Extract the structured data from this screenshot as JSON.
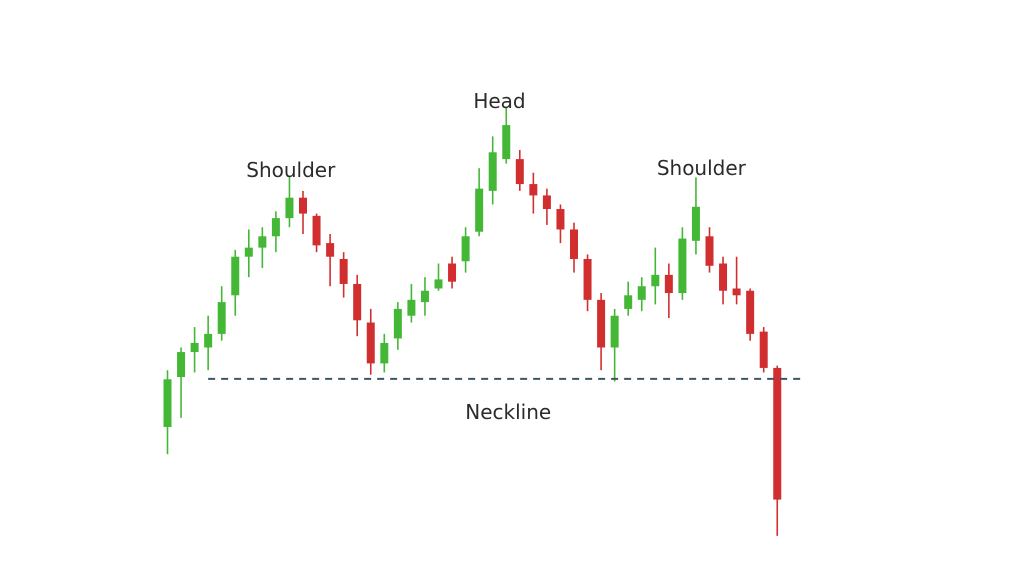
{
  "colors": {
    "bull": "#44b836",
    "bear": "#d12f2f",
    "neckline": "#3e5567",
    "text": "#2b2b2b",
    "background": "#ffffff"
  },
  "chart_data": {
    "type": "candlestick",
    "pattern": "head-and-shoulders",
    "ylim": [
      0,
      100
    ],
    "grid": false,
    "axes_visible": false,
    "neckline": {
      "label": "Neckline",
      "level": 36.6,
      "x_start": 3,
      "x_end": 47,
      "style": "dashed"
    },
    "annotations": [
      {
        "label": "Shoulder",
        "x": 9.1,
        "y": 81.1
      },
      {
        "label": "Head",
        "x": 24.5,
        "y": 96.3
      },
      {
        "label": "Shoulder",
        "x": 39.4,
        "y": 81.5
      }
    ],
    "candles": [
      {
        "i": 0,
        "open": 26,
        "close": 36.5,
        "high": 38.5,
        "low": 20
      },
      {
        "i": 1,
        "open": 37,
        "close": 42.5,
        "high": 43.5,
        "low": 28
      },
      {
        "i": 2,
        "open": 42.5,
        "close": 44.5,
        "high": 48,
        "low": 38
      },
      {
        "i": 3,
        "open": 43.5,
        "close": 46.5,
        "high": 50.5,
        "low": 38.5
      },
      {
        "i": 4,
        "open": 46.5,
        "close": 53.5,
        "high": 57,
        "low": 45
      },
      {
        "i": 5,
        "open": 55,
        "close": 63.5,
        "high": 65,
        "low": 50.5
      },
      {
        "i": 6,
        "open": 63.5,
        "close": 65.5,
        "high": 69.5,
        "low": 59
      },
      {
        "i": 7,
        "open": 65.5,
        "close": 68,
        "high": 70,
        "low": 61
      },
      {
        "i": 8,
        "open": 68,
        "close": 72,
        "high": 73.5,
        "low": 64.5
      },
      {
        "i": 9,
        "open": 72,
        "close": 76.5,
        "high": 81,
        "low": 70
      },
      {
        "i": 10,
        "open": 76.5,
        "close": 73,
        "high": 78,
        "low": 68.5
      },
      {
        "i": 11,
        "open": 72.5,
        "close": 66,
        "high": 73,
        "low": 64.5
      },
      {
        "i": 12,
        "open": 66.5,
        "close": 63.5,
        "high": 68.5,
        "low": 57
      },
      {
        "i": 13,
        "open": 63,
        "close": 57.5,
        "high": 64.5,
        "low": 54.5
      },
      {
        "i": 14,
        "open": 57.5,
        "close": 49.5,
        "high": 59.5,
        "low": 46
      },
      {
        "i": 15,
        "open": 49,
        "close": 40,
        "high": 52,
        "low": 37.5
      },
      {
        "i": 16,
        "open": 40,
        "close": 44.5,
        "high": 46.5,
        "low": 38
      },
      {
        "i": 17,
        "open": 45.5,
        "close": 52,
        "high": 53.5,
        "low": 43
      },
      {
        "i": 18,
        "open": 50.5,
        "close": 54,
        "high": 57.5,
        "low": 49
      },
      {
        "i": 19,
        "open": 53.5,
        "close": 56,
        "high": 59,
        "low": 50.5
      },
      {
        "i": 20,
        "open": 56.5,
        "close": 58.5,
        "high": 62,
        "low": 56
      },
      {
        "i": 21,
        "open": 62,
        "close": 58,
        "high": 63.5,
        "low": 56.5
      },
      {
        "i": 22,
        "open": 62.5,
        "close": 68,
        "high": 70,
        "low": 60
      },
      {
        "i": 23,
        "open": 69,
        "close": 78.5,
        "high": 83,
        "low": 68
      },
      {
        "i": 24,
        "open": 78,
        "close": 86.5,
        "high": 90,
        "low": 75
      },
      {
        "i": 25,
        "open": 85,
        "close": 92.5,
        "high": 96.5,
        "low": 84
      },
      {
        "i": 26,
        "open": 85,
        "close": 79.5,
        "high": 87,
        "low": 78
      },
      {
        "i": 27,
        "open": 79.5,
        "close": 77,
        "high": 82,
        "low": 73
      },
      {
        "i": 28,
        "open": 77,
        "close": 74,
        "high": 78.5,
        "low": 70.5
      },
      {
        "i": 29,
        "open": 74,
        "close": 69.5,
        "high": 75,
        "low": 66.5
      },
      {
        "i": 30,
        "open": 69.5,
        "close": 63,
        "high": 71,
        "low": 60
      },
      {
        "i": 31,
        "open": 63,
        "close": 54,
        "high": 64,
        "low": 51.5
      },
      {
        "i": 32,
        "open": 54,
        "close": 43.5,
        "high": 55.5,
        "low": 38.5
      },
      {
        "i": 33,
        "open": 43.5,
        "close": 50.5,
        "high": 52,
        "low": 36
      },
      {
        "i": 34,
        "open": 52,
        "close": 55,
        "high": 58,
        "low": 50.5
      },
      {
        "i": 35,
        "open": 54,
        "close": 57,
        "high": 59,
        "low": 51.5
      },
      {
        "i": 36,
        "open": 57,
        "close": 59.5,
        "high": 65.5,
        "low": 53
      },
      {
        "i": 37,
        "open": 59.5,
        "close": 55.5,
        "high": 62,
        "low": 50
      },
      {
        "i": 38,
        "open": 55.5,
        "close": 67.5,
        "high": 70,
        "low": 54
      },
      {
        "i": 39,
        "open": 67,
        "close": 74.5,
        "high": 81,
        "low": 64
      },
      {
        "i": 40,
        "open": 68,
        "close": 61.5,
        "high": 70,
        "low": 60
      },
      {
        "i": 41,
        "open": 62,
        "close": 56,
        "high": 63.5,
        "low": 53
      },
      {
        "i": 42,
        "open": 56.5,
        "close": 55,
        "high": 63.5,
        "low": 53
      },
      {
        "i": 43,
        "open": 56,
        "close": 46.5,
        "high": 56.5,
        "low": 45
      },
      {
        "i": 44,
        "open": 47,
        "close": 39,
        "high": 48,
        "low": 38
      },
      {
        "i": 45,
        "open": 39,
        "close": 10,
        "high": 39.5,
        "low": 2
      }
    ]
  }
}
